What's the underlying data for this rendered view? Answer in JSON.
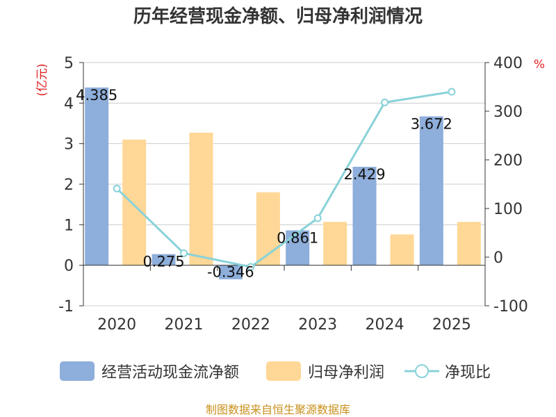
{
  "chart_data": {
    "type": "bar",
    "title": "历年经营现金净额、归母净利润情况",
    "categories": [
      "2020",
      "2021",
      "2022",
      "2023",
      "2024",
      "2025"
    ],
    "series": [
      {
        "name": "经营活动现金流净额",
        "type": "bar",
        "axis": "left",
        "color": "#8eaedb",
        "values": [
          4.385,
          0.275,
          -0.346,
          0.861,
          2.429,
          3.672
        ],
        "labels": [
          "4.385",
          "0.275",
          "-0.346",
          "0.861",
          "2.429",
          "3.672"
        ]
      },
      {
        "name": "归母净利润",
        "type": "bar",
        "axis": "left",
        "color": "#ffd796",
        "values": [
          3.1,
          3.27,
          1.8,
          1.07,
          0.76,
          1.07
        ]
      },
      {
        "name": "净现比",
        "type": "line",
        "axis": "right",
        "color": "#88d2d8",
        "values": [
          141,
          8,
          -20,
          80,
          318,
          340
        ]
      }
    ],
    "yleft": {
      "unit": "(亿元)",
      "range": [
        -1,
        5
      ],
      "ticks": [
        "5",
        "4",
        "3",
        "2",
        "1",
        "0",
        "-1"
      ]
    },
    "yright": {
      "unit": "%",
      "range": [
        -100,
        400
      ],
      "ticks": [
        "400",
        "300",
        "200",
        "100",
        "0",
        "-100"
      ]
    },
    "grid": true,
    "legend_position": "bottom",
    "source": "制图数据来自恒生聚源数据库"
  }
}
